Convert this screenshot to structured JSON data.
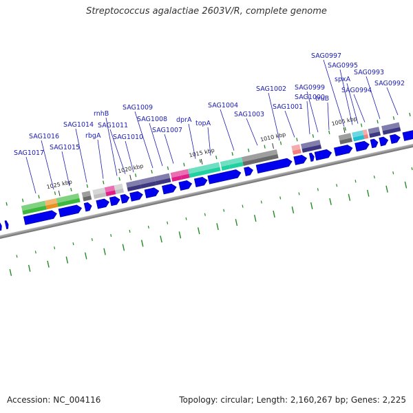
{
  "title": "Streptococcus agalactiae 2603V/R, complete genome",
  "footer": {
    "accession": "Accession: NC_004116",
    "stats": "Topology: circular; Length: 2,160,267 bp; Genes: 2,225"
  },
  "colors": {
    "cds_arrow": "#0000ee",
    "label": "#1a1ab0",
    "backbone": "#7f7f7f",
    "tick": "#1f8a1f"
  },
  "kbp_markers": [
    {
      "label": "1025 kbp",
      "kb": 1025
    },
    {
      "label": "1020 kbp",
      "kb": 1020
    },
    {
      "label": "1015 kbp",
      "kb": 1015
    },
    {
      "label": "1010 kbp",
      "kb": 1010
    },
    {
      "label": "1005 kbp",
      "kb": 1005
    }
  ],
  "gene_labels": [
    {
      "name": "SAG1017"
    },
    {
      "name": "SAG1016"
    },
    {
      "name": "SAG1015"
    },
    {
      "name": "SAG1014"
    },
    {
      "name": "rbgA"
    },
    {
      "name": "rnhB"
    },
    {
      "name": "SAG1011"
    },
    {
      "name": "SAG1010"
    },
    {
      "name": "SAG1009"
    },
    {
      "name": "SAG1008"
    },
    {
      "name": "SAG1007"
    },
    {
      "name": "dprA"
    },
    {
      "name": "topA"
    },
    {
      "name": "SAG1004"
    },
    {
      "name": "SAG1003"
    },
    {
      "name": "SAG1002"
    },
    {
      "name": "SAG1001"
    },
    {
      "name": "SAG1000"
    },
    {
      "name": "SAG0999"
    },
    {
      "name": "truB"
    },
    {
      "name": "SAG0997"
    },
    {
      "name": "SAG0995"
    },
    {
      "name": "spxA"
    },
    {
      "name": "SAG0994"
    },
    {
      "name": "SAG0993"
    },
    {
      "name": "SAG0992"
    }
  ],
  "features": [
    {
      "color": "#3cb83c"
    },
    {
      "color": "#e89020"
    },
    {
      "color": "#3cb83c"
    },
    {
      "color": "#6a6a6a"
    },
    {
      "color": "#c0c0c0"
    },
    {
      "color": "#e0208a"
    },
    {
      "color": "#c0c0c0"
    },
    {
      "color": "#3d3780"
    },
    {
      "color": "#3d3780"
    },
    {
      "color": "#3d3780"
    },
    {
      "color": "#e0208a"
    },
    {
      "color": "#e0208a"
    },
    {
      "color": "#20d0a0"
    },
    {
      "color": "#20d0a0"
    },
    {
      "color": "#20d0a0"
    },
    {
      "color": "#6a6a6a"
    },
    {
      "color": "#f08080"
    },
    {
      "color": "#3d3780"
    },
    {
      "color": "#6a6a6a"
    },
    {
      "color": "#20c0d0"
    },
    {
      "color": "#f08080"
    },
    {
      "color": "#3d3780"
    }
  ]
}
